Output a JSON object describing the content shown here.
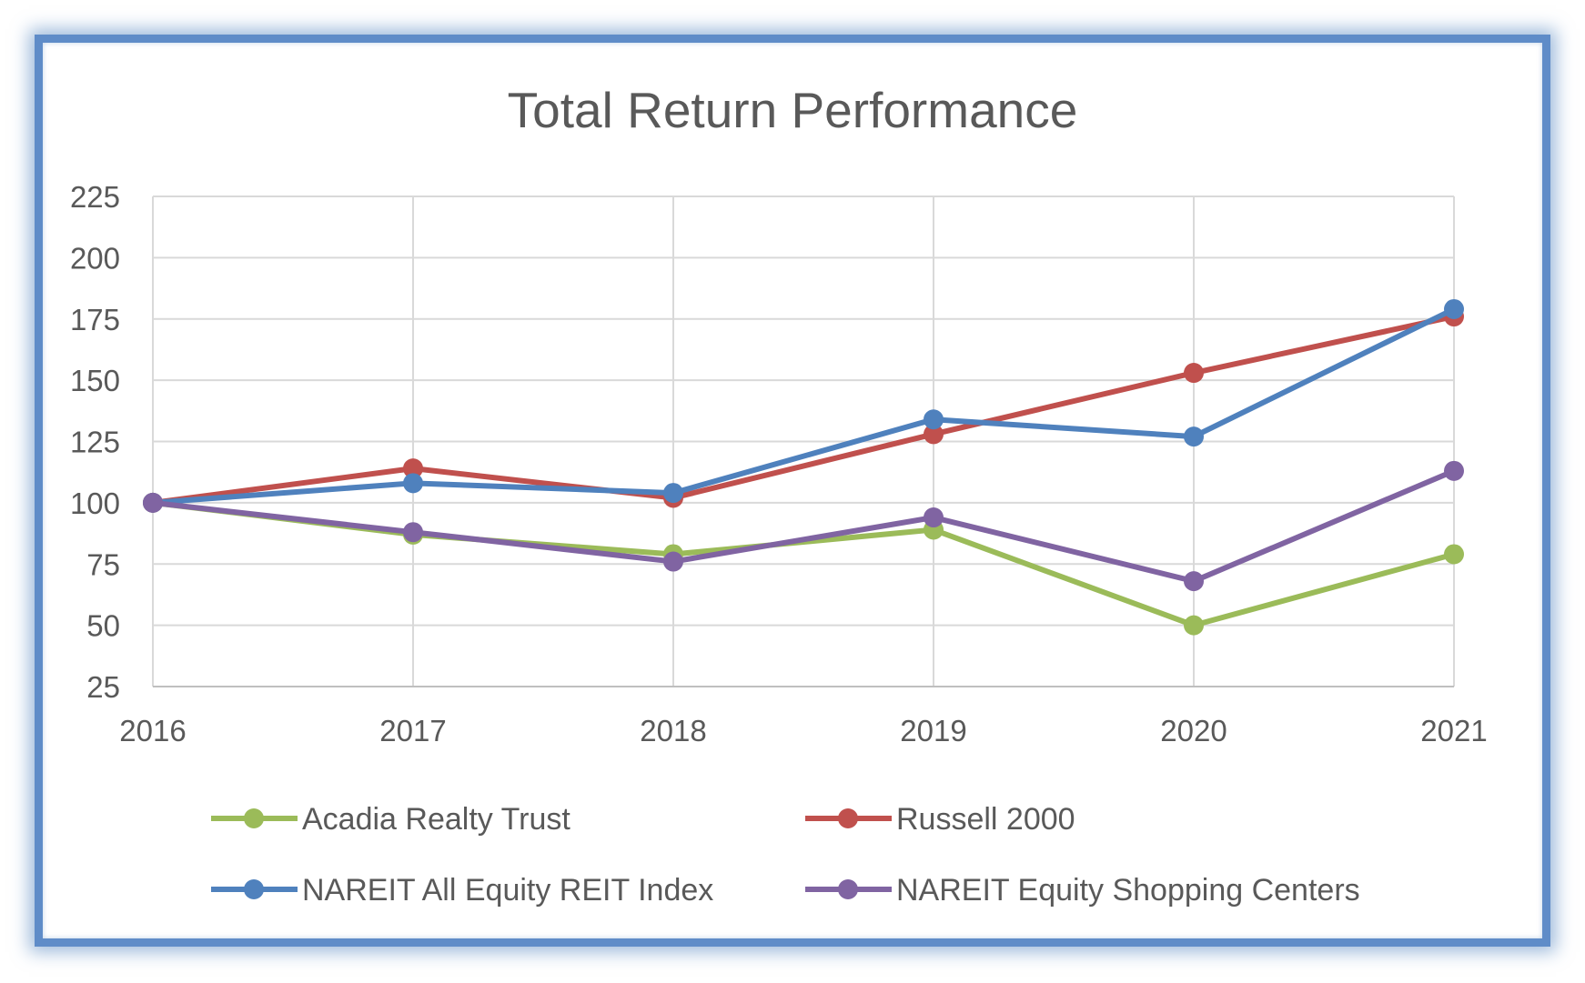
{
  "chart_data": {
    "type": "line",
    "title": "Total Return Performance",
    "xlabel": "",
    "ylabel": "",
    "categories": [
      "2016",
      "2017",
      "2018",
      "2019",
      "2020",
      "2021"
    ],
    "ylim": [
      25,
      225
    ],
    "yticks": [
      25,
      50,
      75,
      100,
      125,
      150,
      175,
      200,
      225
    ],
    "grid": true,
    "legend_position": "bottom",
    "series": [
      {
        "name": "Acadia Realty Trust",
        "color": "#9bbb59",
        "values": [
          100,
          87,
          79,
          89,
          50,
          79
        ]
      },
      {
        "name": "Russell 2000",
        "color": "#c0504d",
        "values": [
          100,
          114,
          102,
          128,
          153,
          176
        ]
      },
      {
        "name": "NAREIT All Equity REIT Index",
        "color": "#4f81bd",
        "values": [
          100,
          108,
          104,
          134,
          127,
          179
        ]
      },
      {
        "name": "NAREIT Equity Shopping Centers",
        "color": "#8064a2",
        "values": [
          100,
          88,
          76,
          94,
          68,
          113
        ]
      }
    ]
  }
}
